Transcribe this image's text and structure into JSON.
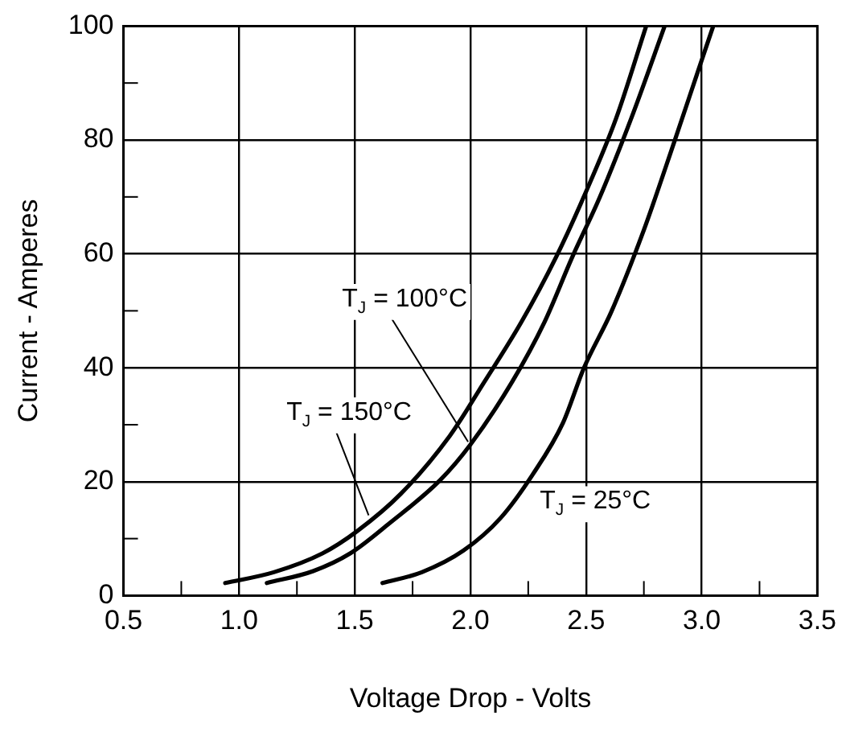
{
  "chart_data": {
    "type": "line",
    "xlabel": "Voltage Drop - Volts",
    "ylabel": "Current - Amperes",
    "xlim": [
      0.5,
      3.5
    ],
    "xticks": [
      {
        "value": 0.5,
        "label": "0.5"
      },
      {
        "value": 0.75,
        "label": null
      },
      {
        "value": 1,
        "label": "1.0"
      },
      {
        "value": 1.25,
        "label": null
      },
      {
        "value": 1.5,
        "label": "1.5"
      },
      {
        "value": 1.75,
        "label": null
      },
      {
        "value": 2,
        "label": "2.0"
      },
      {
        "value": 2.25,
        "label": null
      },
      {
        "value": 2.5,
        "label": "2.5"
      },
      {
        "value": 2.75,
        "label": null
      },
      {
        "value": 3,
        "label": "3.0"
      },
      {
        "value": 3.25,
        "label": null
      },
      {
        "value": 3.5,
        "label": "3.5"
      }
    ],
    "ylim": [
      0,
      100
    ],
    "yticks": [
      0,
      {
        "value": 10,
        "label": null
      },
      20,
      {
        "value": 30,
        "label": null
      },
      40,
      {
        "value": 50,
        "label": null
      },
      60,
      {
        "value": 70,
        "label": null
      },
      80,
      {
        "value": 90,
        "label": null
      },
      100
    ],
    "grid": true,
    "legend": false,
    "marker": "none",
    "line_style": "solid",
    "series": [
      {
        "color": "#000000",
        "x": [
          0.94,
          1.15,
          1.36,
          1.51,
          1.7,
          1.91,
          2.06,
          2.22,
          2.37,
          2.49,
          2.63,
          2.76
        ],
        "values": [
          2.2,
          4.1,
          7.4,
          11.3,
          17.9,
          28,
          37.5,
          48,
          59.4,
          70,
          83.8,
          100
        ]
      },
      {
        "color": "#000000",
        "x": [
          1.12,
          1.32,
          1.48,
          1.65,
          1.87,
          2.0,
          2.18,
          2.32,
          2.44,
          2.56,
          2.7,
          2.84
        ],
        "values": [
          2.2,
          4.3,
          7.4,
          12.7,
          20.3,
          26.5,
          37.5,
          48,
          59.4,
          70,
          84.3,
          100
        ]
      },
      {
        "color": "#000000",
        "x": [
          1.62,
          1.79,
          1.97,
          2.13,
          2.27,
          2.4,
          2.49,
          2.61,
          2.75,
          2.88,
          2.99,
          3.05
        ],
        "values": [
          2.2,
          4.1,
          7.9,
          13.6,
          21.3,
          30.3,
          39.9,
          49.9,
          64.2,
          79.5,
          92.8,
          100
        ]
      }
    ],
    "annotations": [
      {
        "text": "T$_{J}$ = 150°C",
        "x": 1.56,
        "y": 14.1
      },
      {
        "text": "T$_{J}$ = 100°C",
        "x": 1.99,
        "y": 27
      },
      "T$_{J}$ = 25°C"
    ]
  }
}
